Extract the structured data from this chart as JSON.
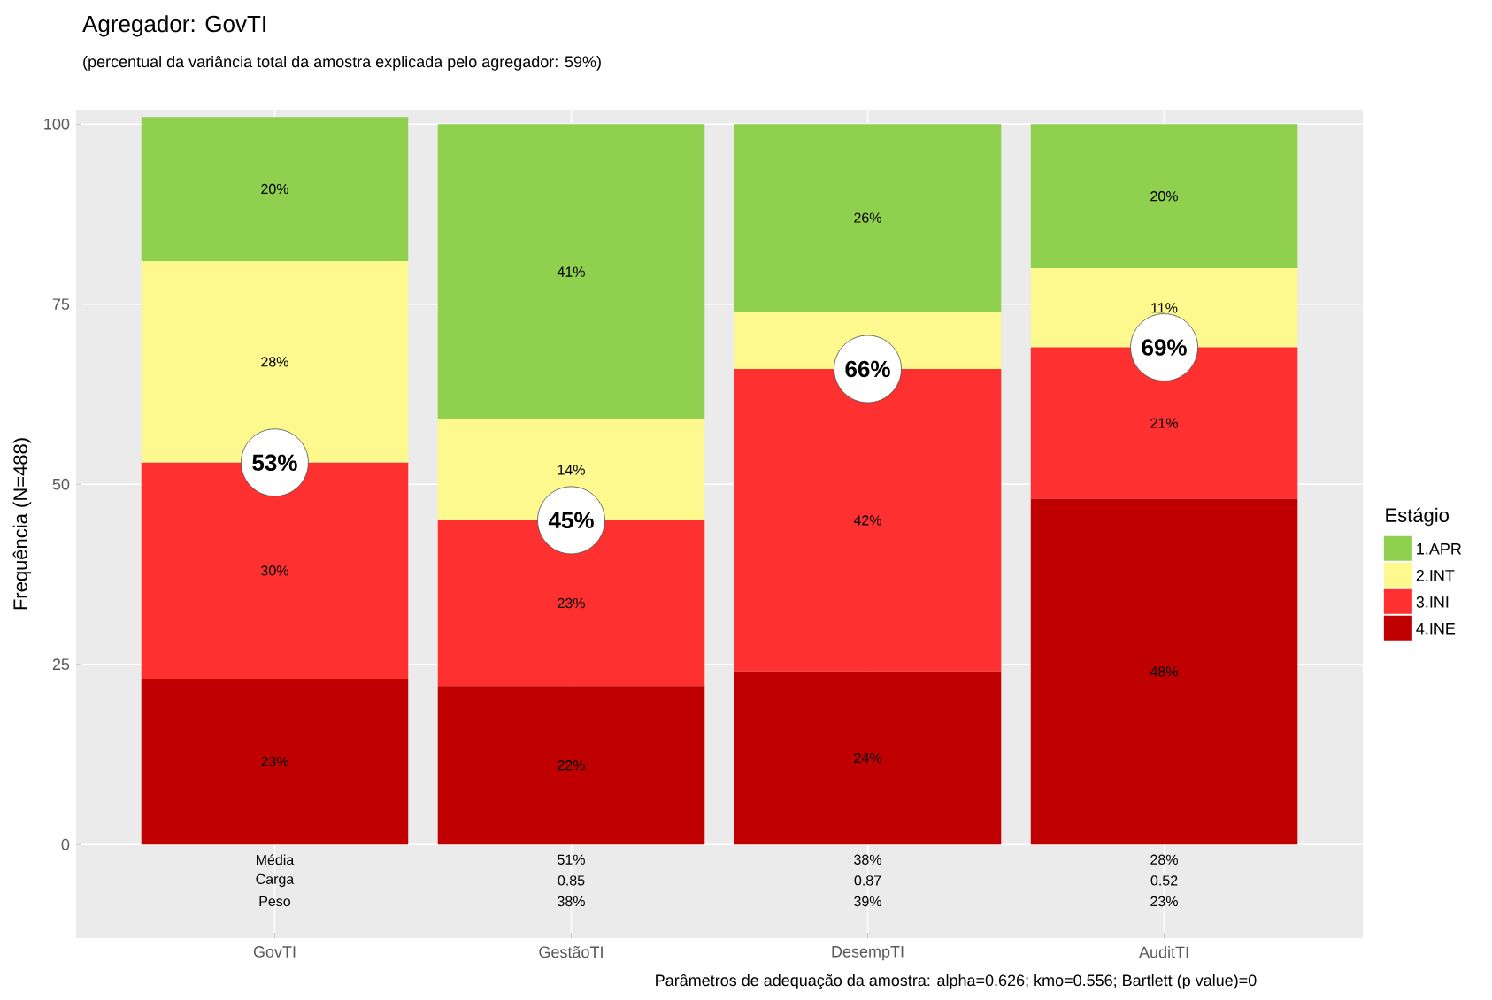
{
  "chart_data": {
    "type": "bar",
    "stacked": true,
    "title": "Agregador: GovTI",
    "subtitle": "(percentual da variância total da amostra explicada pelo agregador: 59%)",
    "ylabel": "Frequência (N=488)",
    "legend_title": "Estágio",
    "legend": "right",
    "grid": true,
    "categories": [
      "GovTI",
      "GestãoTI",
      "DesempTI",
      "AuditTI"
    ],
    "ylim": [
      -13,
      102
    ],
    "yticks": [
      0,
      25,
      50,
      75,
      100
    ],
    "series": [
      {
        "name": "4.INE",
        "color": "#c00000",
        "values": [
          23,
          22,
          24,
          48
        ],
        "value_labels": [
          "23%",
          "22%",
          "24%",
          "48%"
        ]
      },
      {
        "name": "3.INI",
        "color": "#ff3030",
        "values": [
          30,
          23,
          42,
          21
        ],
        "value_labels": [
          "30%",
          "23%",
          "42%",
          "21%"
        ]
      },
      {
        "name": "2.INT",
        "color": "#fdf98e",
        "values": [
          28,
          14,
          8,
          11
        ],
        "value_labels": [
          "28%",
          "14%",
          null,
          "11%"
        ]
      },
      {
        "name": "1.APR",
        "color": "#8fd14f",
        "values": [
          20,
          41,
          26,
          20
        ],
        "value_labels": [
          "20%",
          "41%",
          "26%",
          "20%"
        ]
      }
    ],
    "annotations": [
      {
        "text": "53%",
        "x": "GovTI",
        "y": 53
      },
      {
        "text": "45%",
        "x": "GestãoTI",
        "y": 45
      },
      {
        "text": "66%",
        "x": "DesempTI",
        "y": 66
      },
      {
        "text": "69%",
        "x": "AuditTI",
        "y": 69
      },
      "Média",
      "Carga",
      "Peso",
      "51%",
      "0.85",
      "38%",
      "38%",
      "0.87",
      "39%",
      "28%",
      "0.52",
      "23%",
      "Parâmetros de adequação da amostra: alpha=0.626; kmo=0.556; Bartlett (p value)=0"
    ]
  }
}
